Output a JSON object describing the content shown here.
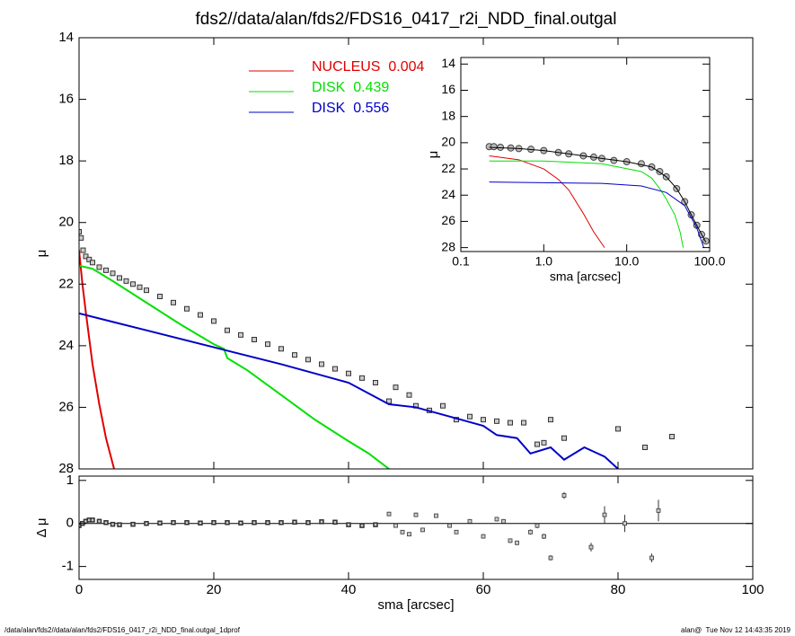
{
  "chart_data": [
    {
      "type": "line",
      "title": "fds2//data/alan/fds2/FDS16_0417_r2i_NDD_final.outgal",
      "ylabel": "μ",
      "xlim": [
        0,
        100
      ],
      "ylim": [
        28,
        14
      ],
      "xticks": [
        0,
        20,
        40,
        60,
        80,
        100
      ],
      "yticks": [
        14,
        16,
        18,
        20,
        22,
        24,
        26,
        28
      ],
      "series": [
        {
          "name": "NUCLEUS  0.004",
          "color": "#e00000",
          "x": [
            0,
            0.5,
            1,
            2,
            3,
            4,
            5.2
          ],
          "values": [
            20.9,
            22.0,
            22.9,
            24.6,
            25.9,
            27.0,
            28
          ]
        },
        {
          "name": "DISK  0.439",
          "color": "#00e000",
          "x": [
            0,
            2,
            5,
            10,
            15,
            20,
            21.5,
            22,
            25,
            30,
            35,
            40,
            43,
            46
          ],
          "values": [
            21.4,
            21.5,
            21.9,
            22.6,
            23.3,
            23.95,
            24.1,
            24.4,
            24.8,
            25.6,
            26.4,
            27.1,
            27.5,
            28
          ]
        },
        {
          "name": "DISK  0.556",
          "color": "#0000c8",
          "x": [
            0,
            10,
            20,
            30,
            40,
            46,
            50,
            55,
            60,
            62,
            65,
            67,
            70,
            72,
            75,
            78,
            80
          ],
          "values": [
            22.95,
            23.5,
            24.05,
            24.6,
            25.2,
            25.9,
            26.0,
            26.3,
            26.6,
            26.9,
            27.0,
            27.5,
            27.3,
            27.7,
            27.3,
            27.6,
            28
          ]
        }
      ],
      "data": {
        "x": [
          0,
          0.3,
          0.6,
          1,
          1.5,
          2,
          3,
          4,
          5,
          6,
          7,
          8,
          9,
          10,
          12,
          14,
          16,
          18,
          20,
          22,
          24,
          26,
          28,
          30,
          32,
          34,
          36,
          38,
          40,
          42,
          44,
          46,
          47,
          49,
          50,
          52,
          54,
          56,
          58,
          60,
          62,
          64,
          66,
          68,
          69,
          70,
          72,
          80,
          84,
          88
        ],
        "values": [
          20.3,
          20.5,
          20.9,
          21.1,
          21.2,
          21.3,
          21.45,
          21.55,
          21.65,
          21.8,
          21.9,
          22.0,
          22.1,
          22.2,
          22.4,
          22.6,
          22.8,
          23.0,
          23.2,
          23.5,
          23.65,
          23.8,
          23.95,
          24.1,
          24.3,
          24.45,
          24.6,
          24.75,
          24.9,
          25.05,
          25.2,
          25.8,
          25.35,
          25.6,
          25.95,
          26.1,
          25.95,
          26.4,
          26.3,
          26.4,
          26.45,
          26.5,
          26.5,
          27.2,
          27.15,
          26.4,
          27.0,
          26.7,
          27.3,
          26.95
        ]
      }
    },
    {
      "type": "scatter",
      "xlabel": "sma [arcsec]",
      "ylabel": "Δ μ",
      "xlim": [
        0,
        100
      ],
      "ylim": [
        -1.3,
        1.1
      ],
      "xticks": [
        0,
        20,
        40,
        60,
        80,
        100
      ],
      "yticks": [
        -1,
        0,
        1
      ],
      "series": [
        {
          "x": [
            0,
            0.5,
            1,
            1.5,
            2,
            3,
            4,
            5,
            6,
            8,
            10,
            12,
            14,
            16,
            18,
            20,
            22,
            24,
            26,
            28,
            30,
            32,
            34,
            36,
            38,
            40,
            42,
            44
          ],
          "values": [
            -0.05,
            0.0,
            0.05,
            0.08,
            0.08,
            0.05,
            0.02,
            -0.02,
            -0.03,
            -0.02,
            0.0,
            0.01,
            0.02,
            0.02,
            0.01,
            0.02,
            0.02,
            0.01,
            0.02,
            0.02,
            0.02,
            0.03,
            0.02,
            0.04,
            0.03,
            -0.03,
            -0.05,
            -0.03
          ]
        },
        {
          "x": [
            46,
            47,
            48,
            49,
            50,
            51,
            53,
            55,
            56,
            58,
            60,
            62,
            63,
            64,
            65,
            67,
            68,
            69,
            70,
            72,
            76,
            78,
            81,
            85,
            86
          ],
          "values": [
            0.22,
            -0.05,
            -0.2,
            -0.25,
            0.2,
            -0.15,
            0.18,
            -0.05,
            -0.2,
            0.05,
            -0.3,
            0.1,
            0.05,
            -0.4,
            -0.45,
            -0.2,
            -0.05,
            -0.3,
            -0.8,
            0.65,
            -0.55,
            0.2,
            0.0,
            -0.8,
            0.3
          ],
          "errors": [
            0.05,
            0.04,
            0.04,
            0.04,
            0.05,
            0.04,
            0.05,
            0.04,
            0.04,
            0.05,
            0.05,
            0.05,
            0.05,
            0.05,
            0.05,
            0.06,
            0.06,
            0.06,
            0.06,
            0.08,
            0.1,
            0.2,
            0.2,
            0.1,
            0.25
          ]
        }
      ]
    },
    {
      "type": "line",
      "xlabel": "sma [arcsec]",
      "ylabel": "μ",
      "xscale": "log",
      "xlim": [
        0.1,
        100
      ],
      "ylim": [
        28.3,
        13.5
      ],
      "xticks": [
        0.1,
        {
          "value": 1,
          "label": "1.0"
        },
        {
          "value": 10,
          "label": "10.0"
        },
        {
          "value": 100,
          "label": "100.0"
        }
      ],
      "yticks": [
        14,
        16,
        18,
        20,
        22,
        24,
        26,
        28
      ],
      "series": [
        {
          "color": "#e00000",
          "x": [
            0.22,
            0.5,
            1,
            1.5,
            2,
            3,
            4,
            5.4
          ],
          "values": [
            21.0,
            21.3,
            22.0,
            22.8,
            23.6,
            25.4,
            26.8,
            28
          ]
        },
        {
          "color": "#00e000",
          "x": [
            0.22,
            1,
            5,
            15,
            20,
            25,
            30,
            38,
            44,
            48
          ],
          "values": [
            21.4,
            21.4,
            21.6,
            22.2,
            22.7,
            23.5,
            24.3,
            25.5,
            26.8,
            28
          ]
        },
        {
          "color": "#0000c8",
          "x": [
            0.22,
            1,
            5,
            15,
            30,
            50,
            70,
            85
          ],
          "values": [
            23.0,
            23.05,
            23.1,
            23.3,
            23.8,
            24.8,
            26.5,
            28
          ]
        },
        {
          "color": "#000000",
          "x": [
            0.22,
            0.5,
            1,
            2,
            3,
            5,
            10,
            20,
            30,
            40,
            50,
            60,
            70,
            80,
            90
          ],
          "values": [
            20.35,
            20.45,
            20.6,
            20.85,
            21.0,
            21.2,
            21.45,
            21.85,
            22.6,
            23.5,
            24.5,
            25.5,
            26.3,
            27.0,
            27.6
          ]
        }
      ],
      "data": {
        "x": [
          0.22,
          0.25,
          0.3,
          0.4,
          0.5,
          0.7,
          1,
          1.5,
          2,
          3,
          4,
          5,
          7,
          10,
          15,
          20,
          25,
          30,
          40,
          50,
          60,
          70,
          80,
          90
        ],
        "values": [
          20.3,
          20.3,
          20.35,
          20.4,
          20.45,
          20.5,
          20.6,
          20.75,
          20.85,
          21.0,
          21.1,
          21.2,
          21.35,
          21.45,
          21.6,
          21.85,
          22.2,
          22.6,
          23.5,
          24.5,
          25.5,
          26.3,
          27.0,
          27.5
        ]
      }
    }
  ],
  "footer": {
    "left": "/data/alan/fds2//data/alan/fds2/FDS16_0417_r2i_NDD_final.outgal_1dprof",
    "right": "alan@  Tue Nov 12 14:43:35 2019"
  }
}
